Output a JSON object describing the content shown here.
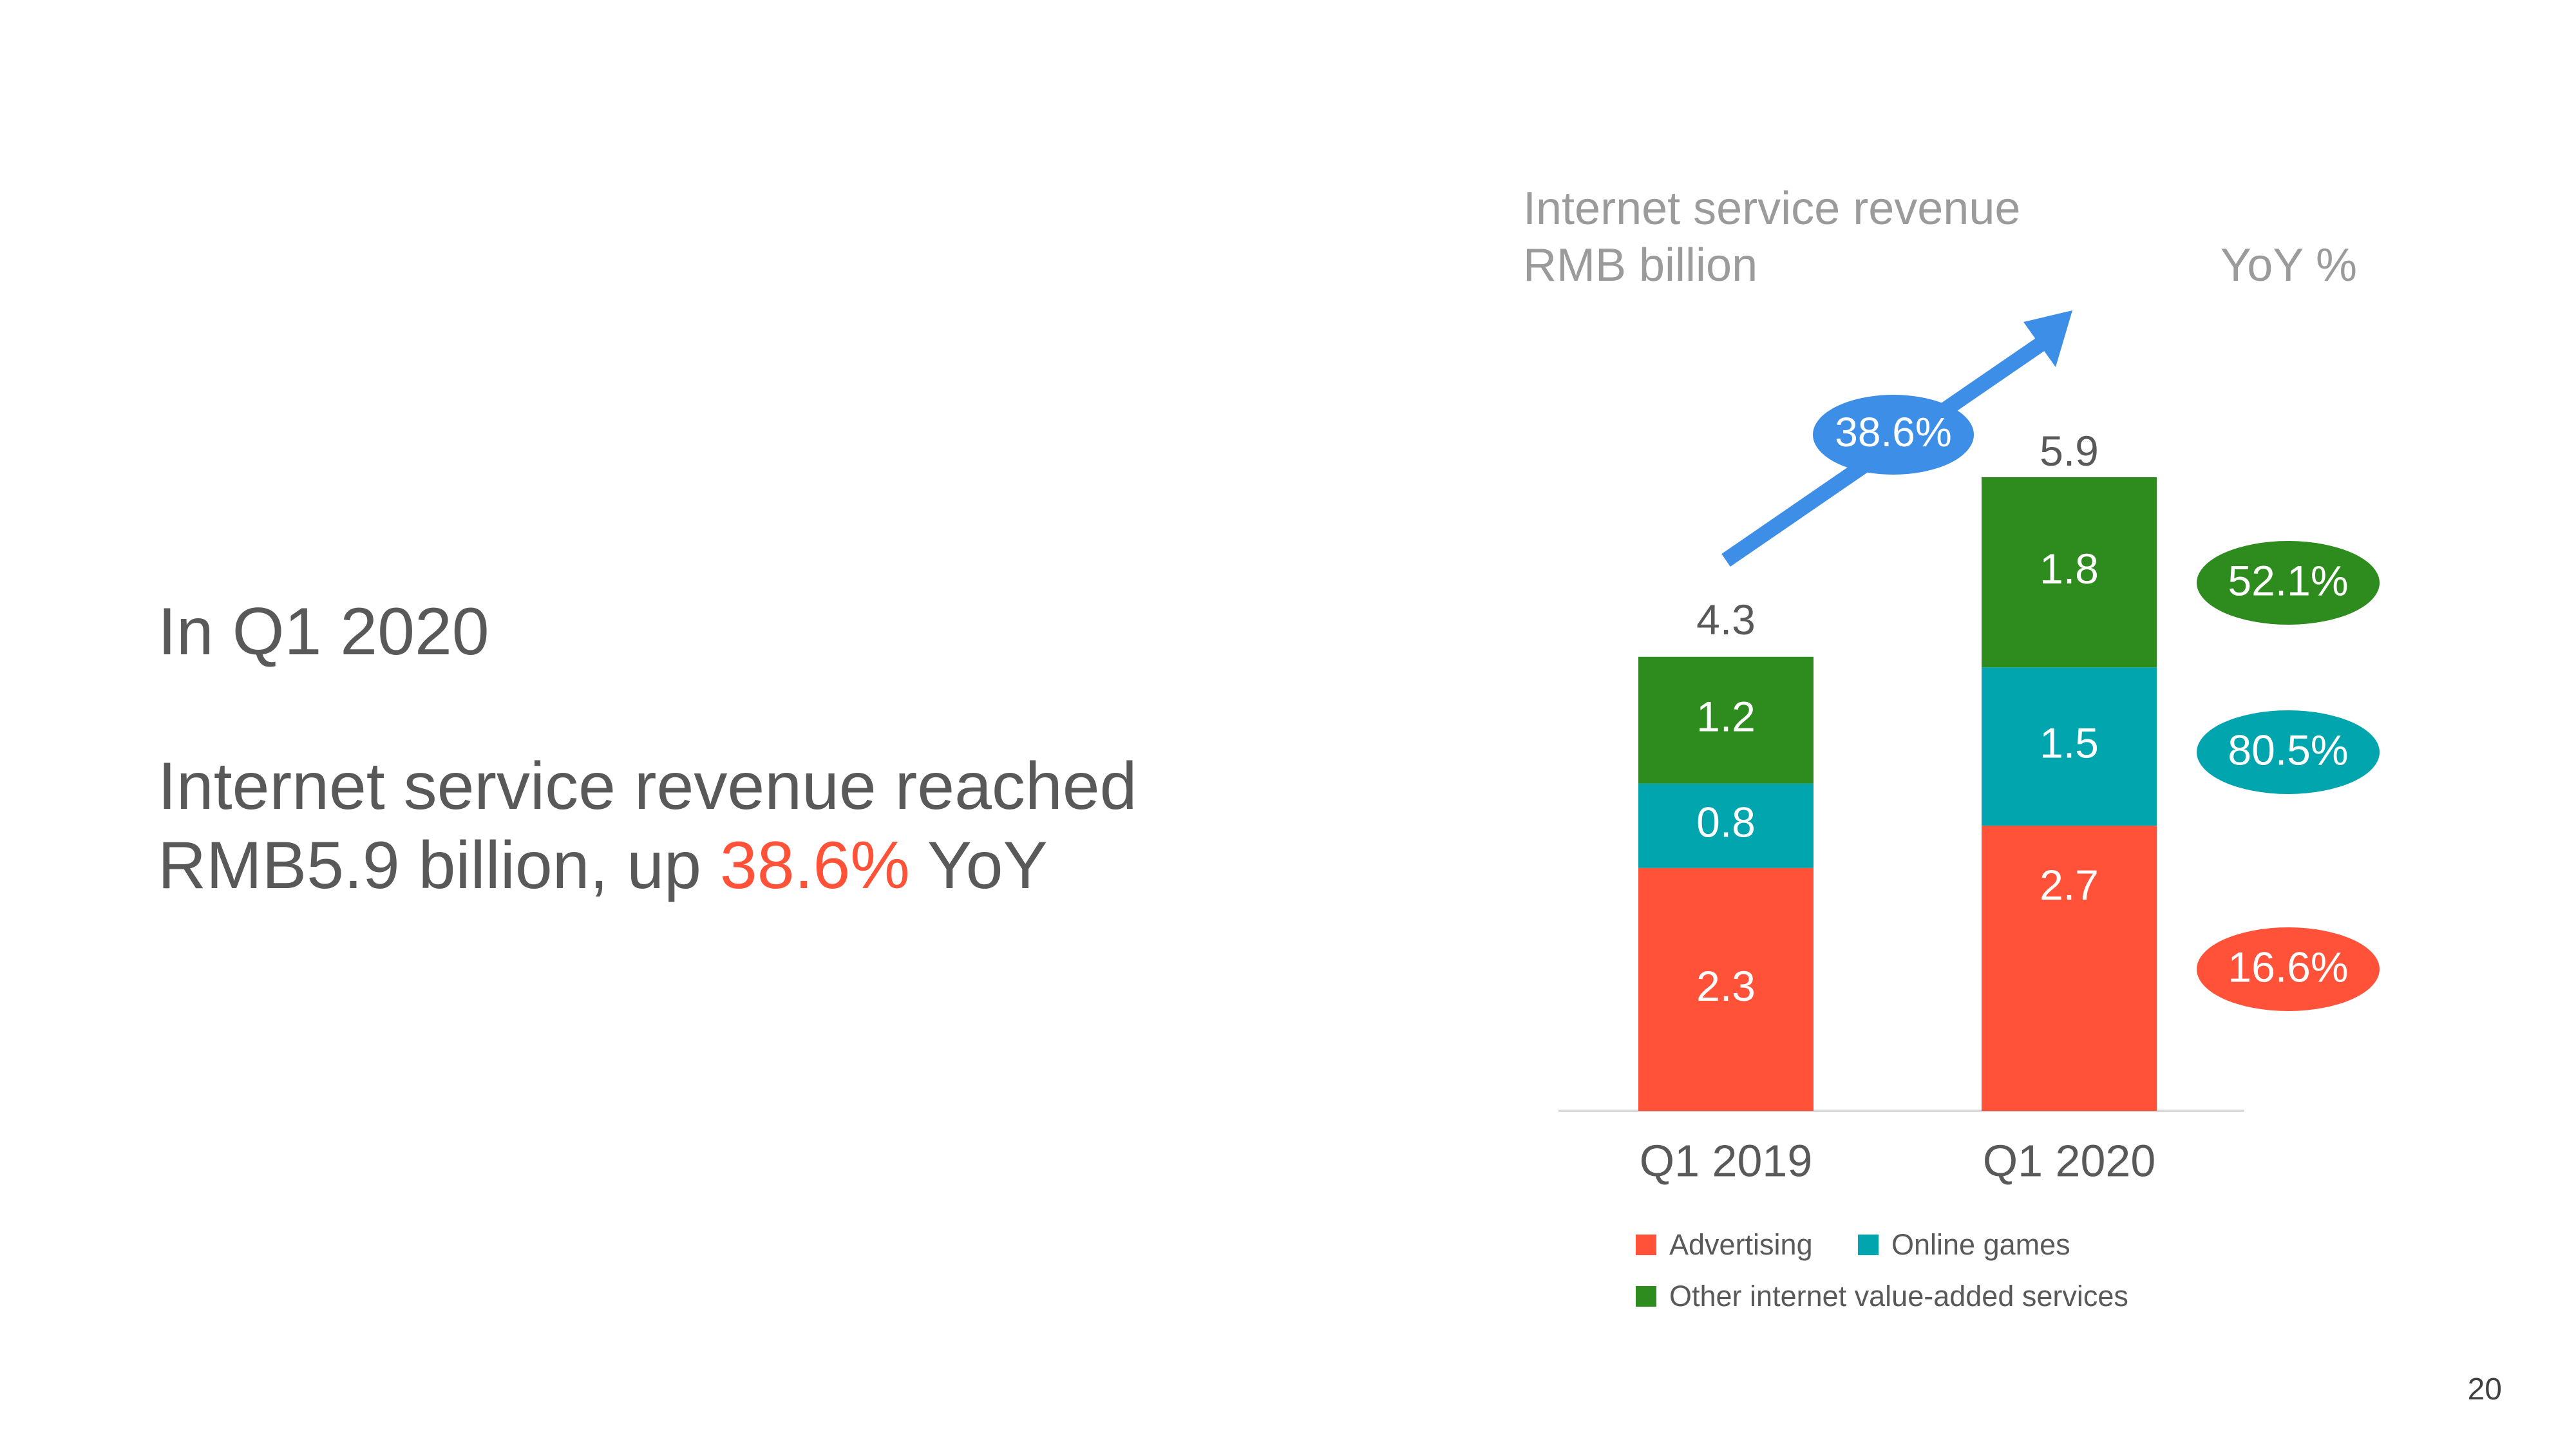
{
  "headline": {
    "line1": "In Q1 2020",
    "line2a": "Internet service revenue reached",
    "line2b_prefix": "RMB5.9 billion, up ",
    "line2b_highlight": "38.6%",
    "line2b_suffix": " YoY"
  },
  "chart_header": {
    "title_line1": "Internet service revenue",
    "title_line2": "RMB billion",
    "yoy_label": "YoY %"
  },
  "chart_data": {
    "type": "bar",
    "stacked": true,
    "categories": [
      "Q1 2019",
      "Q1 2020"
    ],
    "series": [
      {
        "name": "Advertising",
        "color": "#FF5238",
        "values": [
          2.3,
          2.7
        ]
      },
      {
        "name": "Online games",
        "color": "#00A5AE",
        "values": [
          0.8,
          1.5
        ]
      },
      {
        "name": "Other internet value-added services",
        "color": "#2E8B1E",
        "values": [
          1.2,
          1.8
        ]
      }
    ],
    "totals": [
      4.3,
      5.9
    ],
    "growth_label": "38.6%",
    "yoy": [
      {
        "series": "Other internet value-added services",
        "value": "52.1%"
      },
      {
        "series": "Online games",
        "value": "80.5%"
      },
      {
        "series": "Advertising",
        "value": "16.6%"
      }
    ],
    "colors": {
      "growth_arrow": "#3C8EE6",
      "label_text": "#ffffff",
      "total_text": "#595959",
      "axis": "#d9d9d9"
    },
    "ylim": [
      0,
      6
    ]
  },
  "legend_items": [
    {
      "label": "Advertising",
      "color": "#FF5238"
    },
    {
      "label": "Online games",
      "color": "#00A5AE"
    },
    {
      "label": "Other internet value-added services",
      "color": "#2E8B1E"
    }
  ],
  "page_number": "20"
}
